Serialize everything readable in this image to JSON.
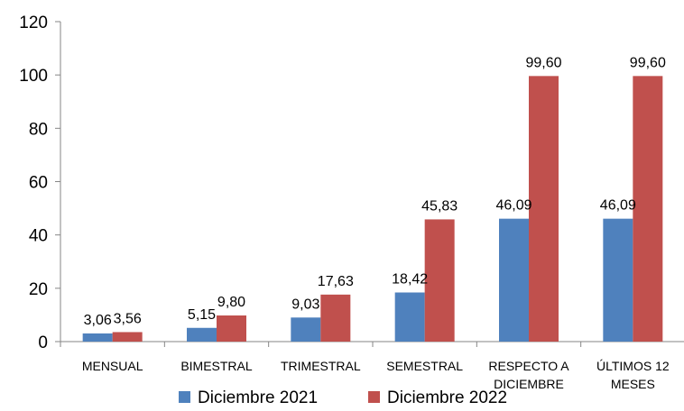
{
  "chart_data": {
    "type": "bar",
    "categories": [
      [
        "MENSUAL"
      ],
      [
        "BIMESTRAL"
      ],
      [
        "TRIMESTRAL"
      ],
      [
        "SEMESTRAL"
      ],
      [
        "RESPECTO A",
        "DICIEMBRE"
      ],
      [
        "ÚLTIMOS 12",
        "MESES"
      ]
    ],
    "series": [
      {
        "name": "Diciembre 2021",
        "color": "#4F81BD",
        "values": [
          3.06,
          5.15,
          9.03,
          18.42,
          46.09,
          46.09
        ],
        "labels": [
          "3,06",
          "5,15",
          "9,03",
          "18,42",
          "46,09",
          "46,09"
        ]
      },
      {
        "name": "Diciembre 2022",
        "color": "#C0504D",
        "values": [
          3.56,
          9.8,
          17.63,
          45.83,
          99.6,
          99.6
        ],
        "labels": [
          "3,56",
          "9,80",
          "17,63",
          "45,83",
          "99,60",
          "99,60"
        ]
      }
    ],
    "yticks": [
      "0",
      "20",
      "40",
      "60",
      "80",
      "100",
      "120"
    ],
    "ylim": [
      0,
      120
    ],
    "grid": false,
    "legend_position": "bottom",
    "title": "",
    "xlabel": "",
    "ylabel": ""
  }
}
